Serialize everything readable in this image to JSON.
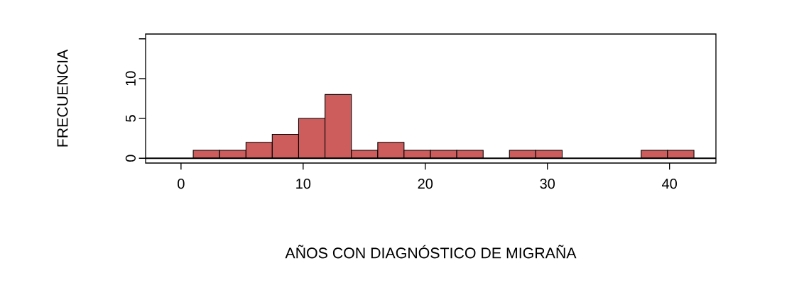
{
  "chart_data": {
    "type": "histogram",
    "xlabel": "AÑOS CON DIAGNÓSTICO DE MIGRAÑA",
    "ylabel": "FRECUENCIA",
    "bins": [
      1,
      3.16,
      5.32,
      7.47,
      9.63,
      11.79,
      13.95,
      16.11,
      18.26,
      20.42,
      22.58,
      24.74,
      26.89,
      29.05,
      31.21,
      33.37,
      35.53,
      37.68,
      39.84,
      42
    ],
    "values": [
      1,
      1,
      2,
      3,
      5,
      8,
      1,
      2,
      1,
      1,
      1,
      0,
      1,
      1,
      0,
      0,
      0,
      1,
      1
    ],
    "color": "#cd5c5c",
    "xlim": [
      -2.9,
      43.8
    ],
    "ylim": [
      -0.6,
      15.6
    ],
    "xticks": [
      0,
      10,
      20,
      30,
      40
    ],
    "yticks": [
      0,
      5,
      10,
      {
        "value": 15,
        "label": null
      }
    ],
    "ref_lines": [
      {
        "axis": "y",
        "value": 0,
        "color": "#000000"
      }
    ],
    "grid": false
  }
}
